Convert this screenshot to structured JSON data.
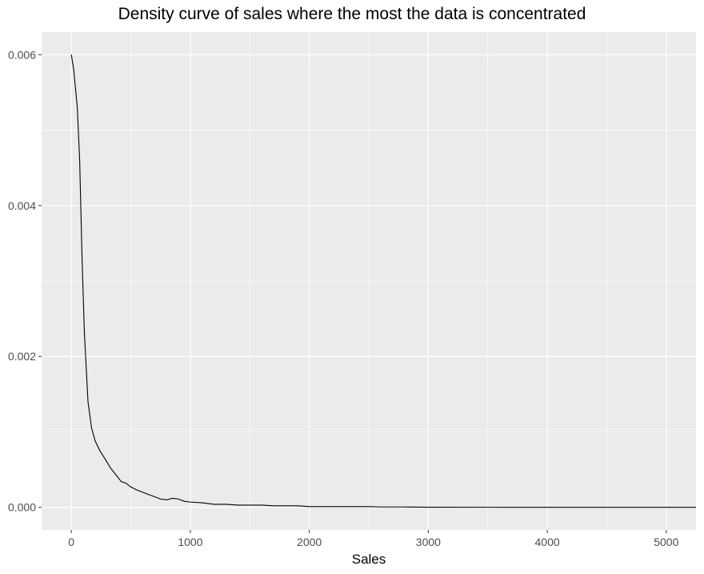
{
  "chart_data": {
    "type": "line",
    "title": "Density curve of sales where the most the data is concentrated",
    "xlabel": "Sales",
    "ylabel": "",
    "xlim": [
      -250,
      5250
    ],
    "ylim": [
      -0.0003,
      0.0063
    ],
    "x_ticks": [
      0,
      1000,
      2000,
      3000,
      4000,
      5000
    ],
    "x_tick_labels": [
      "0",
      "1000",
      "2000",
      "3000",
      "4000",
      "5000"
    ],
    "y_ticks": [
      0,
      0.002,
      0.004,
      0.006
    ],
    "y_tick_labels": [
      "0.000",
      "0.002",
      "0.004",
      "0.006"
    ],
    "grid": true,
    "colors": {
      "panel": "#ebebeb",
      "grid": "#ffffff",
      "line": "#000000"
    },
    "series": [
      {
        "x": [
          0,
          20,
          50,
          70,
          90,
          110,
          140,
          170,
          200,
          240,
          280,
          330,
          380,
          420,
          460,
          500,
          550,
          600,
          650,
          700,
          750,
          800,
          850,
          900,
          950,
          1000,
          1100,
          1200,
          1300,
          1400,
          1500,
          1600,
          1700,
          1800,
          1900,
          2000,
          2100,
          2200,
          2300,
          2400,
          2500,
          2600,
          2700,
          2800,
          2900,
          3000,
          3500,
          4000,
          4500,
          5000,
          5250
        ],
        "y": [
          0.006,
          0.0058,
          0.0053,
          0.0046,
          0.0033,
          0.0023,
          0.0014,
          0.00105,
          0.00088,
          0.00075,
          0.00065,
          0.00052,
          0.00042,
          0.00034,
          0.00032,
          0.00027,
          0.00023,
          0.0002,
          0.00017,
          0.00014,
          0.00011,
          0.0001,
          0.00012,
          0.00011,
          8e-05,
          7e-05,
          6e-05,
          4e-05,
          4e-05,
          3e-05,
          3e-05,
          3e-05,
          2e-05,
          2e-05,
          2e-05,
          1e-05,
          1e-05,
          1e-05,
          1e-05,
          1e-05,
          1e-05,
          5e-06,
          5e-06,
          5e-06,
          3e-06,
          2e-06,
          1e-06,
          5e-07,
          3e-07,
          2e-07,
          1e-07
        ]
      }
    ]
  }
}
